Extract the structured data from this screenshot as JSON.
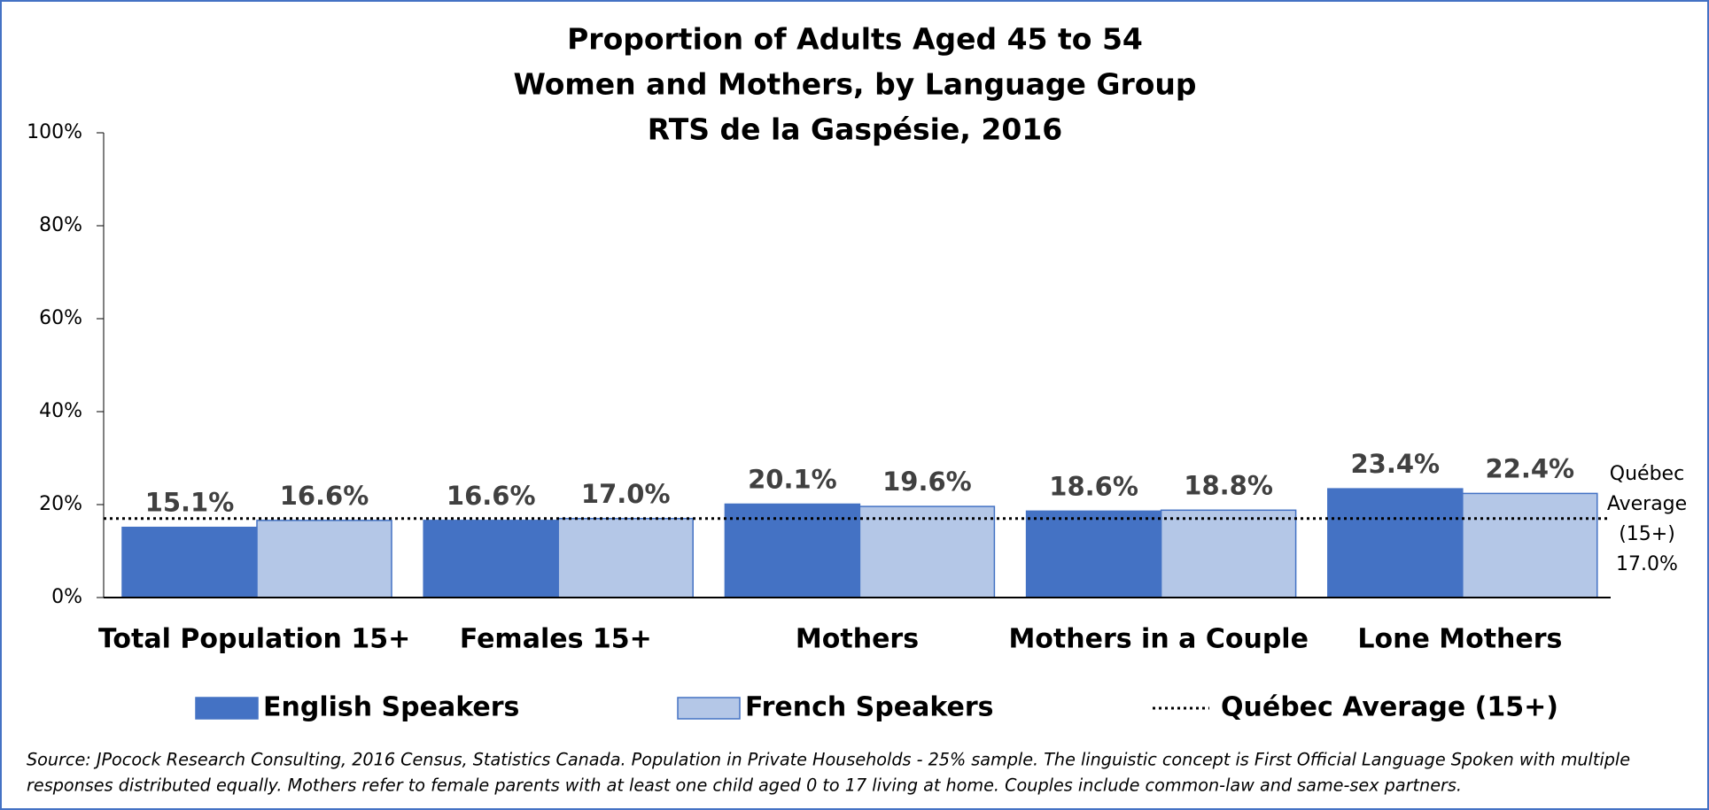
{
  "chart_data": {
    "type": "bar",
    "title": [
      "Proportion of Adults Aged 45 to 54",
      "Women and Mothers, by Language Group",
      "RTS de la Gaspésie, 2016"
    ],
    "categories": [
      "Total Population 15+",
      "Females 15+",
      "Mothers",
      "Mothers in a Couple",
      "Lone Mothers"
    ],
    "series": [
      {
        "name": "English Speakers",
        "color": "#4472c4",
        "values": [
          15.1,
          16.6,
          20.1,
          18.6,
          23.4
        ],
        "value_labels": [
          "15.1%",
          "16.6%",
          "20.1%",
          "18.6%",
          "23.4%"
        ]
      },
      {
        "name": "French Speakers",
        "color": "#b4c7e7",
        "values": [
          16.6,
          17.0,
          19.6,
          18.8,
          22.4
        ],
        "value_labels": [
          "16.6%",
          "17.0%",
          "19.6%",
          "18.8%",
          "22.4%"
        ]
      }
    ],
    "reference_line": {
      "name": "Québec Average (15+)",
      "value": 17.0,
      "annotation": [
        "Québec",
        "Average",
        "(15+)",
        "17.0%"
      ],
      "color": "#000000"
    },
    "ylim": [
      0,
      100
    ],
    "yticks": [
      {
        "value": 0,
        "label": "0%"
      },
      {
        "value": 20,
        "label": "20%"
      },
      {
        "value": 40,
        "label": "40%"
      },
      {
        "value": 60,
        "label": "60%"
      },
      {
        "value": 80,
        "label": "80%"
      },
      {
        "value": 100,
        "label": "100%"
      }
    ],
    "legend": "bottom",
    "source": [
      "Source: JPocock Research Consulting, 2016 Census, Statistics Canada. Population in Private Households - 25% sample. The linguistic concept is First Official Language Spoken with multiple",
      "responses distributed equally. Mothers refer to female parents with at least one child aged 0 to 17 living at home. Couples include common-law and same-sex partners."
    ]
  }
}
